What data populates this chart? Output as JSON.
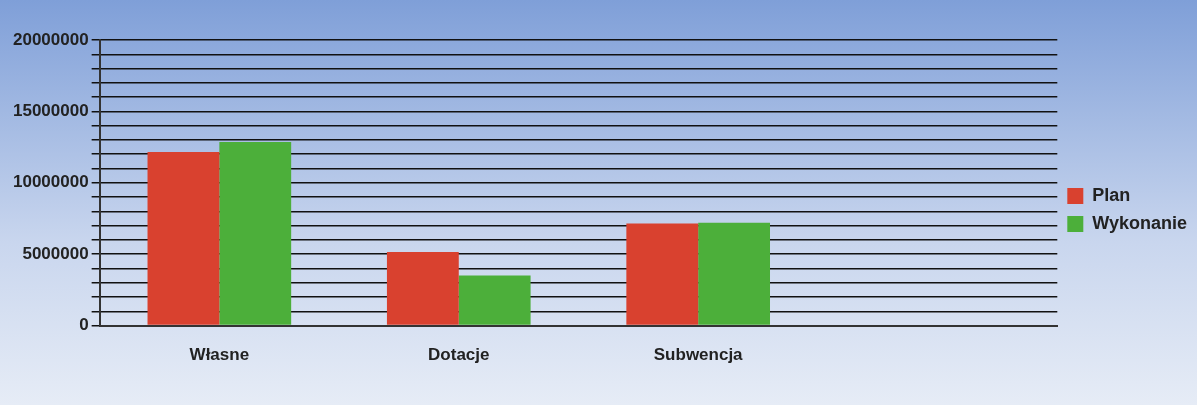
{
  "chart_data": {
    "type": "bar",
    "categories": [
      "Własne",
      "Dotacje",
      "Subwencja",
      null
    ],
    "series": [
      {
        "name": "Plan",
        "color": "#d9412f",
        "values": [
          12150000,
          5150000,
          7150000,
          null
        ]
      },
      {
        "name": "Wykonanie",
        "color": "#4caf3a",
        "values": [
          12850000,
          3500000,
          7200000,
          null
        ]
      }
    ],
    "ylim": [
      0,
      20000000
    ],
    "yticks": [
      0,
      {
        "value": 1000000,
        "label": null
      },
      {
        "value": 2000000,
        "label": null
      },
      {
        "value": 3000000,
        "label": null
      },
      {
        "value": 4000000,
        "label": null
      },
      5000000,
      {
        "value": 6000000,
        "label": null
      },
      {
        "value": 7000000,
        "label": null
      },
      {
        "value": 8000000,
        "label": null
      },
      {
        "value": 9000000,
        "label": null
      },
      10000000,
      {
        "value": 11000000,
        "label": null
      },
      {
        "value": 12000000,
        "label": null
      },
      {
        "value": 13000000,
        "label": null
      },
      {
        "value": 14000000,
        "label": null
      },
      15000000,
      {
        "value": 16000000,
        "label": null
      },
      {
        "value": 17000000,
        "label": null
      },
      {
        "value": 18000000,
        "label": null
      },
      {
        "value": 19000000,
        "label": null
      },
      20000000
    ],
    "grid": "y",
    "legend": "right"
  }
}
